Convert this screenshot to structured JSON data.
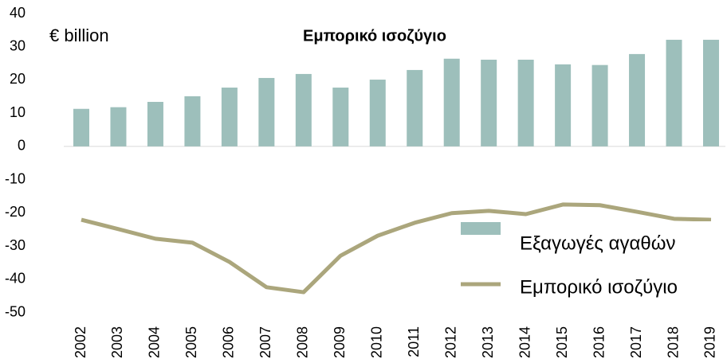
{
  "chart_data": {
    "type": "bar_line",
    "title": "Εμπορικό ισοζύγιο",
    "y_label": "€ billion",
    "categories": [
      "2002",
      "2003",
      "2004",
      "2005",
      "2006",
      "2007",
      "2008",
      "2009",
      "2010",
      "2011",
      "2012",
      "2013",
      "2014",
      "2015",
      "2016",
      "2017",
      "2018",
      "2019"
    ],
    "series": [
      {
        "name": "Εξαγωγές αγαθών",
        "type": "bar",
        "color": "#9dbfbb",
        "values": [
          11.3,
          11.8,
          13.4,
          15.1,
          17.7,
          20.6,
          21.8,
          17.7,
          20.1,
          23.0,
          26.4,
          26.1,
          26.1,
          24.7,
          24.5,
          27.8,
          32.1,
          32.1
        ]
      },
      {
        "name": "Εμπορικό ισοζύγιο",
        "type": "line",
        "color": "#aba67c",
        "values": [
          -22.1,
          -24.9,
          -27.8,
          -29.0,
          -34.8,
          -42.4,
          -43.9,
          -32.9,
          -26.9,
          -23.0,
          -20.1,
          -19.4,
          -20.4,
          -17.5,
          -17.7,
          -19.7,
          -21.8,
          -22.1
        ]
      }
    ],
    "ylim": [
      -50,
      40
    ],
    "yticks": [
      -50,
      -40,
      -30,
      -20,
      -10,
      0,
      10,
      20,
      30,
      40
    ],
    "legend": "lower right"
  }
}
